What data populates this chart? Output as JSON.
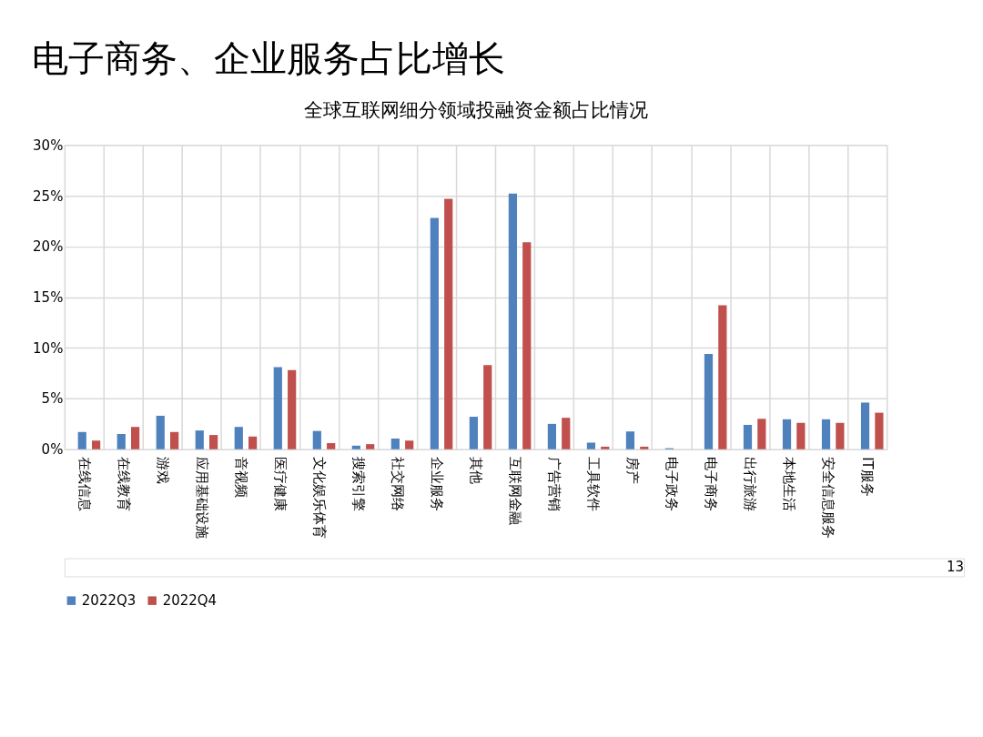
{
  "chart_data": {
    "type": "bar",
    "title": "电子商务、企业服务占比增长",
    "subtitle": "全球互联网细分领域投融资金额占比情况",
    "categories": [
      "在线信息",
      "在线教育",
      "游戏",
      "应用基础设施",
      "音视频",
      "医疗健康",
      "文化娱乐体育",
      "搜索引擎",
      "社交网络",
      "企业服务",
      "其他",
      "互联网金融",
      "广告营销",
      "工具软件",
      "房产",
      "电子政务",
      "电子商务",
      "出行旅游",
      "本地生活",
      "安全信息服务",
      "IT服务"
    ],
    "series": [
      {
        "name": "2022Q3",
        "color": "#4f81bd",
        "values": [
          1.7,
          1.5,
          3.3,
          1.85,
          2.2,
          8.1,
          1.8,
          0.35,
          1.05,
          22.8,
          3.2,
          25.2,
          2.5,
          0.65,
          1.75,
          0.1,
          9.4,
          2.4,
          2.95,
          2.95,
          4.6
        ]
      },
      {
        "name": "2022Q4",
        "color": "#c0504d",
        "values": [
          0.85,
          2.2,
          1.7,
          1.4,
          1.25,
          7.8,
          0.6,
          0.5,
          0.85,
          24.7,
          8.3,
          20.4,
          3.1,
          0.25,
          0.25,
          0,
          14.2,
          3.0,
          2.6,
          2.6,
          3.6
        ]
      }
    ],
    "ylim": [
      0,
      30
    ],
    "yticks": [
      {
        "value": 0,
        "label": "0%"
      },
      {
        "value": 5,
        "label": "5%"
      },
      {
        "value": 10,
        "label": "10%"
      },
      {
        "value": 15,
        "label": "15%"
      },
      {
        "value": 20,
        "label": "20%"
      },
      {
        "value": 25,
        "label": "25%"
      },
      {
        "value": 30,
        "label": "30%"
      }
    ],
    "grid": true,
    "legend": "bottom",
    "annotations": [
      "13"
    ]
  }
}
